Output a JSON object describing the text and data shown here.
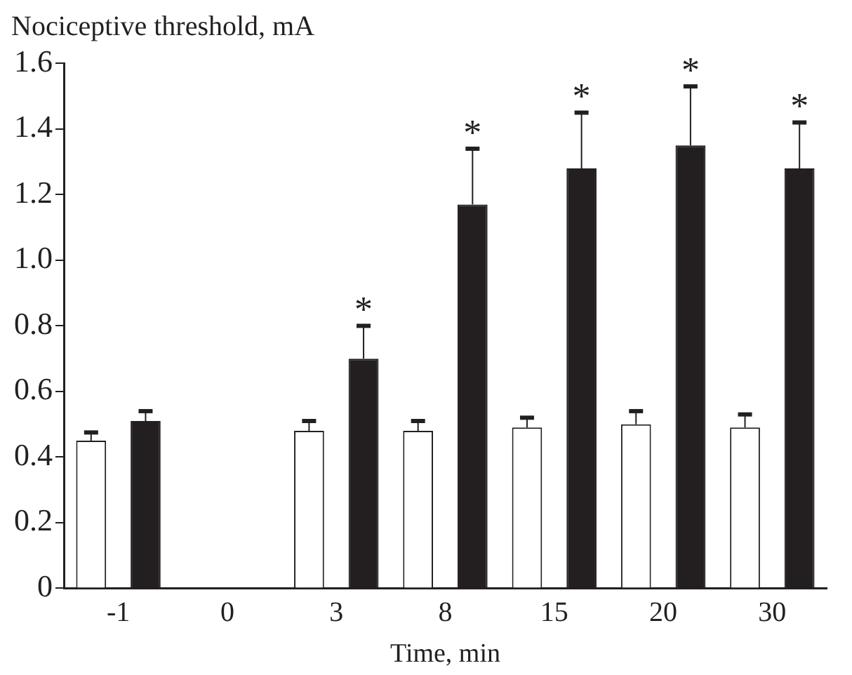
{
  "chart_data": {
    "type": "bar",
    "xlabel": "Time, min",
    "ylabel": "Nociceptive threshold, mA",
    "categories": [
      "-1",
      "0",
      "3",
      "8",
      "15",
      "20",
      "30"
    ],
    "series": [
      {
        "color": "#ffffff",
        "values": [
          0.45,
          null,
          0.48,
          0.48,
          0.49,
          0.5,
          0.49
        ],
        "errors": [
          [
            0.45,
            0.475
          ],
          null,
          [
            0.48,
            0.51
          ],
          [
            0.48,
            0.51
          ],
          [
            0.49,
            0.52
          ],
          [
            0.5,
            0.54
          ],
          [
            0.49,
            0.53
          ]
        ]
      },
      {
        "color": "#231f20",
        "values": [
          0.51,
          null,
          0.7,
          1.17,
          1.28,
          1.35,
          1.28
        ],
        "errors": [
          [
            0.51,
            0.54
          ],
          null,
          [
            0.7,
            0.8
          ],
          [
            1.17,
            1.34
          ],
          [
            1.28,
            1.45
          ],
          [
            1.35,
            1.53
          ],
          [
            1.28,
            1.42
          ]
        ]
      }
    ],
    "ylim": [
      0,
      1.6
    ],
    "yticks": [
      0,
      0.2,
      0.4,
      0.6,
      0.8,
      {
        "value": 1,
        "label": "1.0"
      },
      1.2,
      1.4,
      1.6
    ],
    "annotations": [
      "*",
      "*",
      "*",
      "*",
      "*"
    ],
    "grid": false,
    "legend": false
  }
}
